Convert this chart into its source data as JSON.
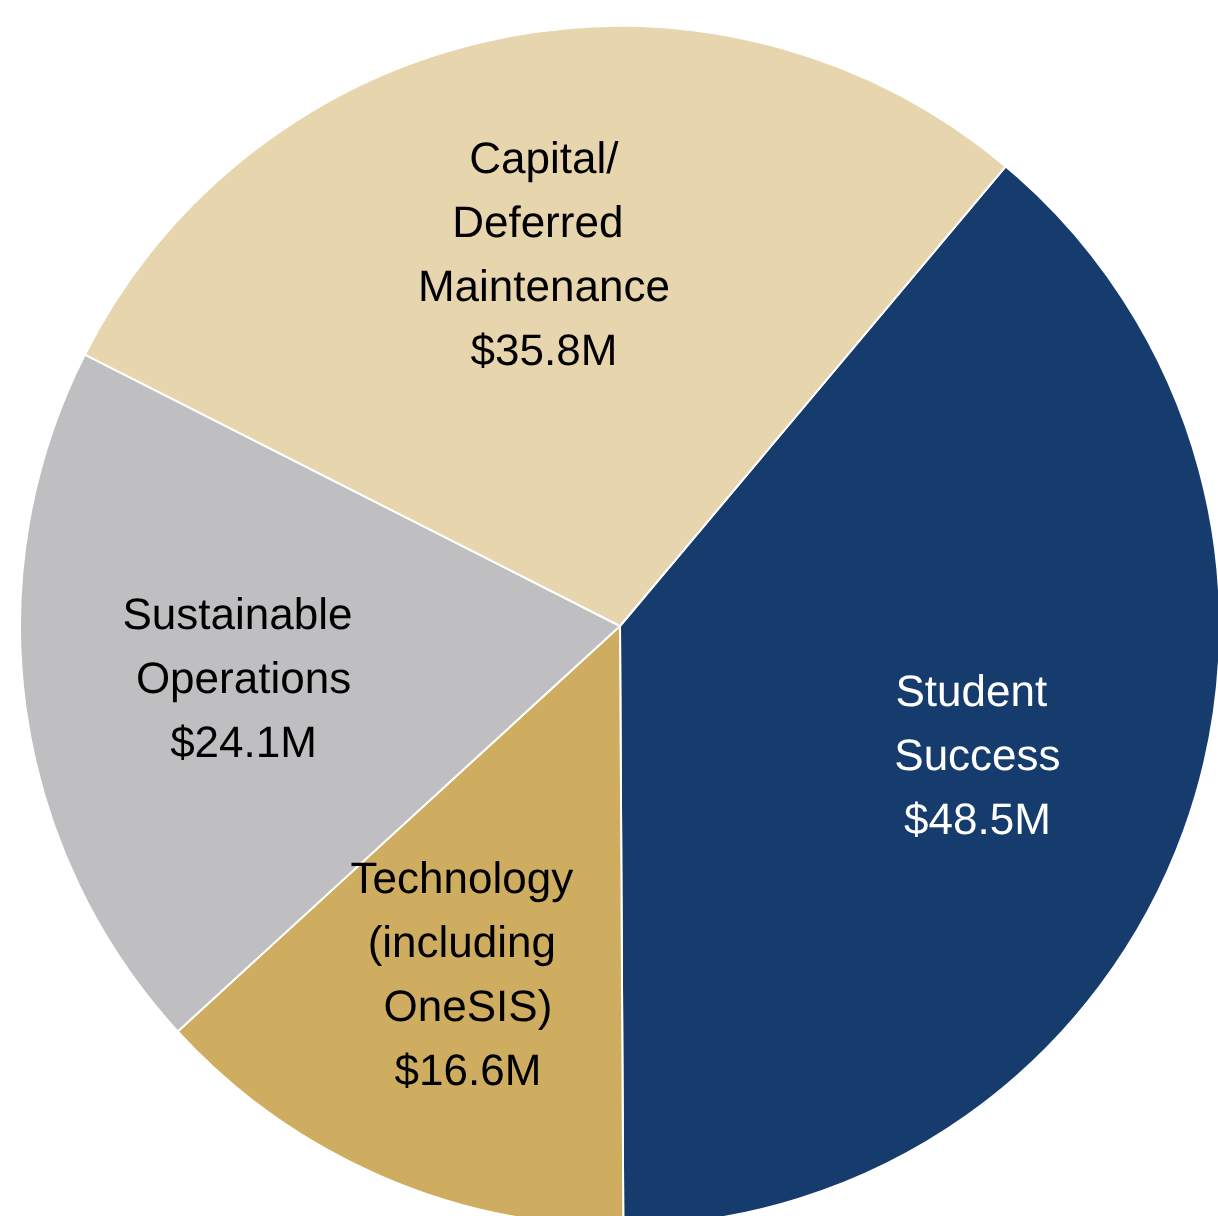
{
  "chart_data": {
    "type": "pie",
    "categories": [
      "Student Success",
      "Technology (including OneSIS)",
      "Sustainable Operations",
      "Capital/Deferred Maintenance"
    ],
    "values": [
      48.5,
      16.6,
      24.1,
      35.8
    ],
    "value_labels": [
      "$48.5M",
      "$16.6M",
      "$24.1M",
      "$35.8M"
    ],
    "colors": [
      "#163c6e",
      "#cfad60",
      "#bfbfc1",
      "#e6d5ad"
    ],
    "legend": false
  }
}
